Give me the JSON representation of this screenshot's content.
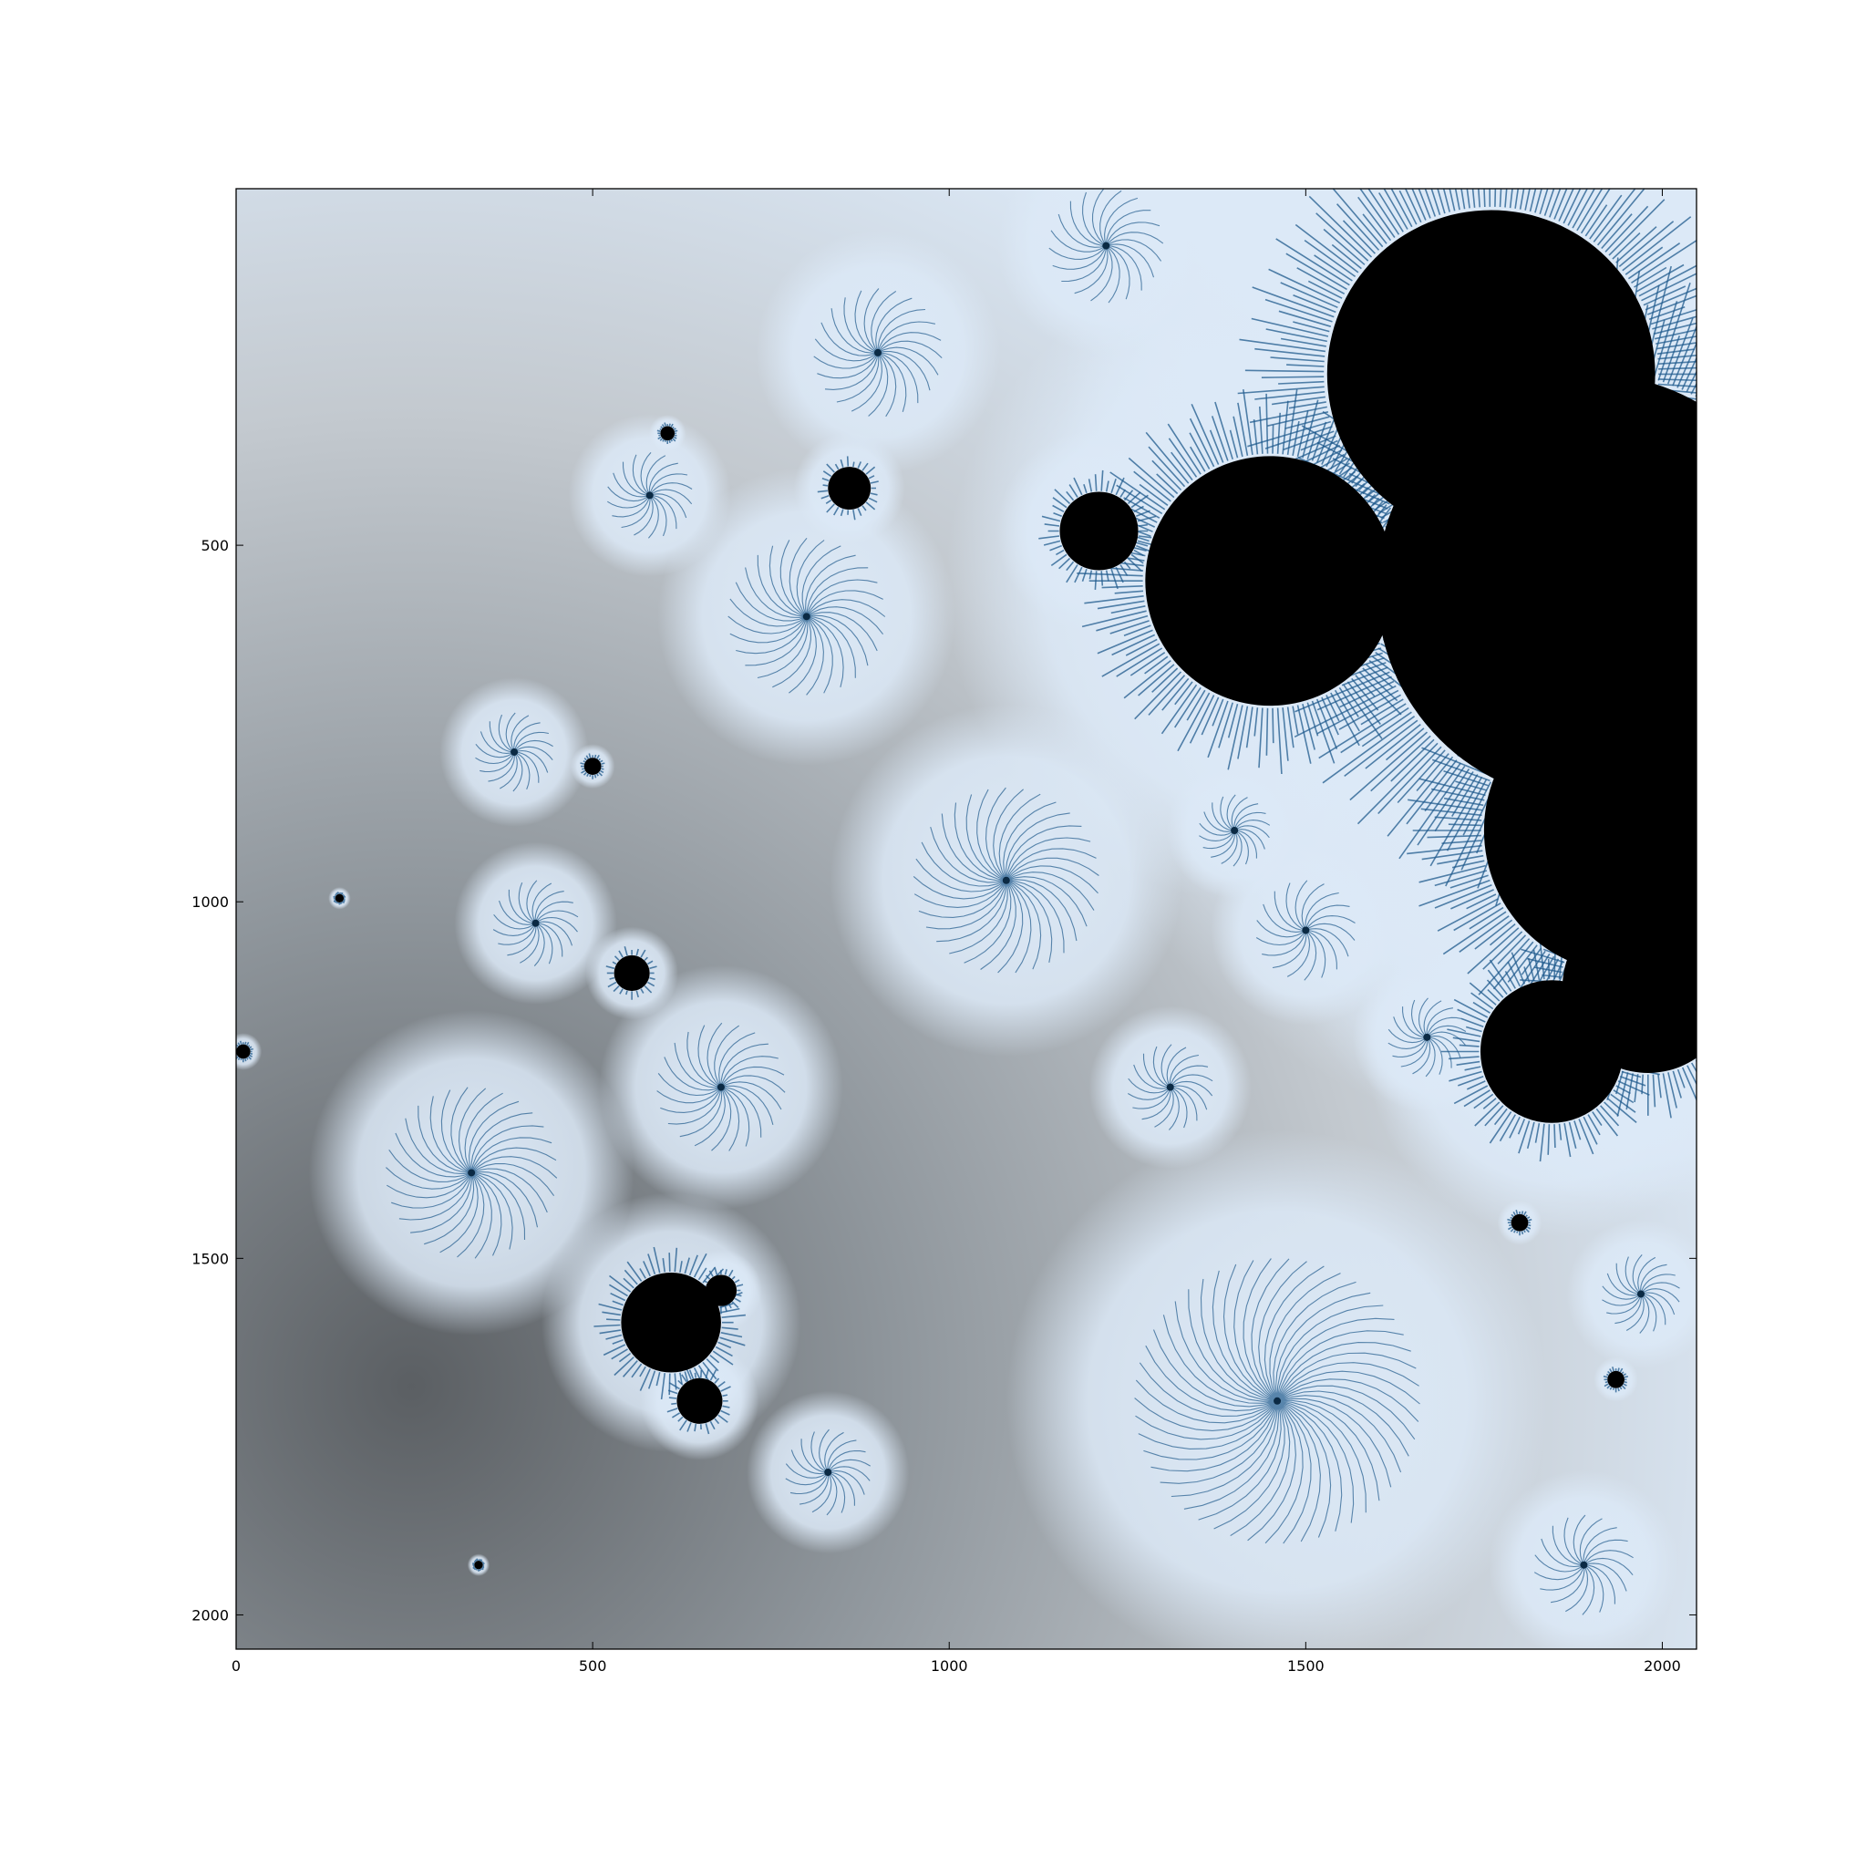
{
  "chart_data": {
    "type": "heatmap",
    "title": "",
    "xlabel": "",
    "ylabel": "",
    "xlim": [
      0,
      2048
    ],
    "ylim": [
      2048,
      0
    ],
    "x_ticks": [
      {
        "value": 0,
        "label": "0"
      },
      {
        "value": 500,
        "label": "500"
      },
      {
        "value": 1000,
        "label": "1000"
      },
      {
        "value": 1500,
        "label": "1500"
      },
      {
        "value": 2000,
        "label": "2000"
      }
    ],
    "y_ticks": [
      {
        "value": 500,
        "label": "500"
      },
      {
        "value": 1000,
        "label": "1000"
      },
      {
        "value": 1500,
        "label": "1500"
      },
      {
        "value": 2000,
        "label": "2000"
      }
    ],
    "grid": false,
    "legend": "none",
    "colors": {
      "interior": "#000000",
      "filament": "#1f5a8c",
      "near": "#dce9f7",
      "mid": "#c3c9cf",
      "far": "#5b5f63",
      "frame": "#000000"
    },
    "black_regions": [
      {
        "cx": 1760,
        "cy": 260,
        "r": 230
      },
      {
        "cx": 1900,
        "cy": 560,
        "r": 300
      },
      {
        "cx": 1950,
        "cy": 900,
        "r": 200
      },
      {
        "cx": 1450,
        "cy": 550,
        "r": 175
      },
      {
        "cx": 1210,
        "cy": 480,
        "r": 55
      },
      {
        "cx": 1845,
        "cy": 1210,
        "r": 100
      },
      {
        "cx": 1980,
        "cy": 1120,
        "r": 120
      },
      {
        "cx": 610,
        "cy": 1590,
        "r": 70
      },
      {
        "cx": 650,
        "cy": 1700,
        "r": 32
      },
      {
        "cx": 680,
        "cy": 1545,
        "r": 22
      },
      {
        "cx": 860,
        "cy": 420,
        "r": 30
      },
      {
        "cx": 555,
        "cy": 1100,
        "r": 25
      },
      {
        "cx": 10,
        "cy": 1210,
        "r": 10
      },
      {
        "cx": 1800,
        "cy": 1450,
        "r": 12
      },
      {
        "cx": 1935,
        "cy": 1670,
        "r": 12
      },
      {
        "cx": 500,
        "cy": 810,
        "r": 12
      },
      {
        "cx": 605,
        "cy": 343,
        "r": 10
      },
      {
        "cx": 340,
        "cy": 1930,
        "r": 6
      },
      {
        "cx": 145,
        "cy": 995,
        "r": 6
      }
    ],
    "spirals": [
      {
        "cx": 1460,
        "cy": 1700,
        "r": 200
      },
      {
        "cx": 1080,
        "cy": 970,
        "r": 130
      },
      {
        "cx": 800,
        "cy": 600,
        "r": 110
      },
      {
        "cx": 330,
        "cy": 1380,
        "r": 120
      },
      {
        "cx": 680,
        "cy": 1260,
        "r": 90
      },
      {
        "cx": 900,
        "cy": 230,
        "r": 90
      },
      {
        "cx": 1220,
        "cy": 80,
        "r": 80
      },
      {
        "cx": 1890,
        "cy": 1930,
        "r": 70
      },
      {
        "cx": 1500,
        "cy": 1040,
        "r": 70
      },
      {
        "cx": 1310,
        "cy": 1260,
        "r": 60
      },
      {
        "cx": 420,
        "cy": 1030,
        "r": 60
      },
      {
        "cx": 580,
        "cy": 430,
        "r": 60
      },
      {
        "cx": 830,
        "cy": 1800,
        "r": 60
      },
      {
        "cx": 1970,
        "cy": 1550,
        "r": 55
      },
      {
        "cx": 1670,
        "cy": 1190,
        "r": 55
      },
      {
        "cx": 390,
        "cy": 790,
        "r": 55
      },
      {
        "cx": 1400,
        "cy": 900,
        "r": 50
      }
    ]
  }
}
